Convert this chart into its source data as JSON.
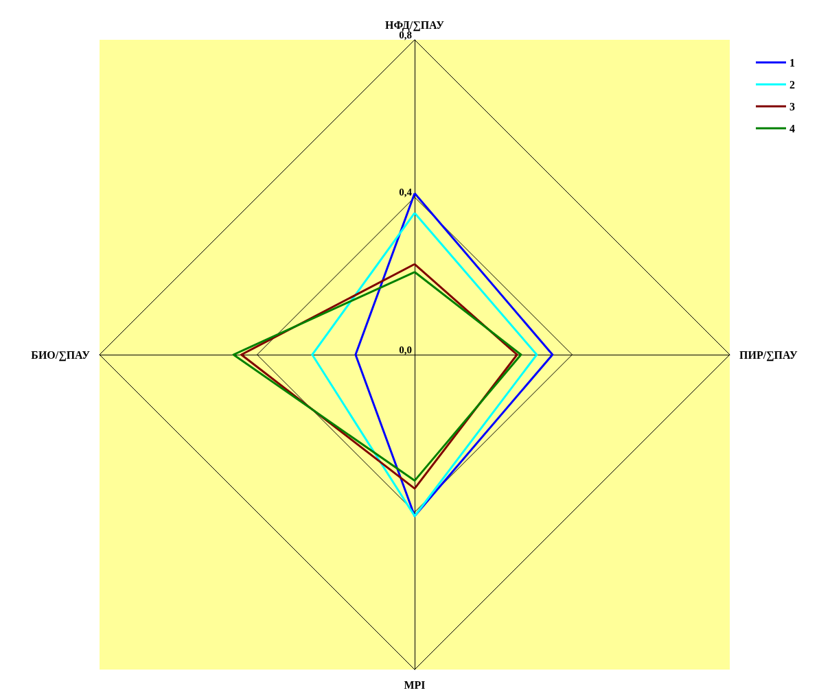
{
  "chart_data": {
    "type": "radar",
    "categories": [
      "НФД/∑ПАУ",
      "ПИР/∑ПАУ",
      "MPI",
      "БИО/∑ПАУ"
    ],
    "series": [
      {
        "name": "1",
        "color": "#0000ff",
        "values": [
          0.41,
          0.35,
          0.41,
          0.15
        ]
      },
      {
        "name": "2",
        "color": "#00ffff",
        "values": [
          0.36,
          0.31,
          0.41,
          0.26
        ]
      },
      {
        "name": "3",
        "color": "#800000",
        "values": [
          0.23,
          0.26,
          0.34,
          0.44
        ]
      },
      {
        "name": "4",
        "color": "#008000",
        "values": [
          0.21,
          0.27,
          0.32,
          0.46
        ]
      }
    ],
    "ylim": [
      0,
      0.8
    ],
    "yticks": [
      {
        "value": 0,
        "label": "0,0"
      },
      {
        "value": 0.4,
        "label": "0,4"
      },
      {
        "value": 0.8,
        "label": "0,8"
      }
    ],
    "legend": "top right",
    "marker": "none",
    "line_style": "solid"
  }
}
